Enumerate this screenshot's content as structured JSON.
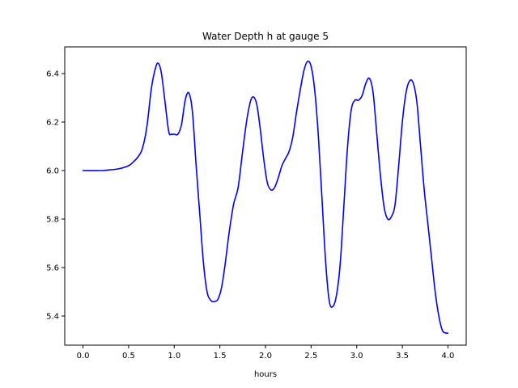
{
  "chart_data": {
    "type": "line",
    "title": "Water Depth h at gauge 5",
    "xlabel": "hours",
    "ylabel": "",
    "xlim": [
      -0.2,
      4.2
    ],
    "ylim": [
      5.28,
      6.51
    ],
    "xticks": [
      0.0,
      0.5,
      1.0,
      1.5,
      2.0,
      2.5,
      3.0,
      3.5,
      4.0
    ],
    "xtick_labels": [
      "0.0",
      "0.5",
      "1.0",
      "1.5",
      "2.0",
      "2.5",
      "3.0",
      "3.5",
      "4.0"
    ],
    "yticks": [
      5.4,
      5.6,
      5.8,
      6.0,
      6.2,
      6.4
    ],
    "ytick_labels": [
      "5.4",
      "5.6",
      "5.8",
      "6.0",
      "6.2",
      "6.4"
    ],
    "grid": false,
    "series": [
      {
        "color": "#0000ff",
        "x": [
          0.0,
          0.2,
          0.3,
          0.4,
          0.5,
          0.55,
          0.6,
          0.65,
          0.7,
          0.75,
          0.8,
          0.83,
          0.86,
          0.9,
          0.94,
          0.97,
          1.0,
          1.04,
          1.08,
          1.12,
          1.16,
          1.2,
          1.24,
          1.28,
          1.32,
          1.36,
          1.4,
          1.44,
          1.48,
          1.52,
          1.56,
          1.6,
          1.65,
          1.7,
          1.75,
          1.8,
          1.85,
          1.9,
          1.94,
          1.98,
          2.02,
          2.06,
          2.1,
          2.14,
          2.18,
          2.22,
          2.26,
          2.3,
          2.34,
          2.38,
          2.42,
          2.46,
          2.5,
          2.54,
          2.58,
          2.62,
          2.66,
          2.7,
          2.74,
          2.78,
          2.82,
          2.86,
          2.9,
          2.94,
          2.98,
          3.02,
          3.06,
          3.1,
          3.14,
          3.18,
          3.22,
          3.26,
          3.3,
          3.34,
          3.38,
          3.42,
          3.46,
          3.5,
          3.54,
          3.58,
          3.62,
          3.66,
          3.7,
          3.74,
          3.78,
          3.82,
          3.86,
          3.9,
          3.94,
          3.98,
          4.0
        ],
        "y": [
          6.0,
          6.0,
          6.003,
          6.008,
          6.02,
          6.035,
          6.055,
          6.09,
          6.18,
          6.34,
          6.43,
          6.44,
          6.4,
          6.28,
          6.16,
          6.15,
          6.15,
          6.15,
          6.19,
          6.29,
          6.32,
          6.24,
          6.02,
          5.82,
          5.62,
          5.5,
          5.465,
          5.46,
          5.47,
          5.52,
          5.62,
          5.74,
          5.86,
          5.93,
          6.08,
          6.22,
          6.3,
          6.28,
          6.18,
          6.05,
          5.95,
          5.92,
          5.93,
          5.97,
          6.02,
          6.05,
          6.08,
          6.14,
          6.24,
          6.33,
          6.41,
          6.45,
          6.43,
          6.33,
          6.14,
          5.88,
          5.62,
          5.46,
          5.44,
          5.49,
          5.62,
          5.86,
          6.1,
          6.25,
          6.29,
          6.29,
          6.31,
          6.36,
          6.38,
          6.32,
          6.15,
          5.98,
          5.85,
          5.8,
          5.81,
          5.86,
          6.02,
          6.2,
          6.32,
          6.37,
          6.36,
          6.28,
          6.1,
          5.92,
          5.78,
          5.64,
          5.5,
          5.4,
          5.34,
          5.33,
          5.33
        ]
      }
    ]
  }
}
